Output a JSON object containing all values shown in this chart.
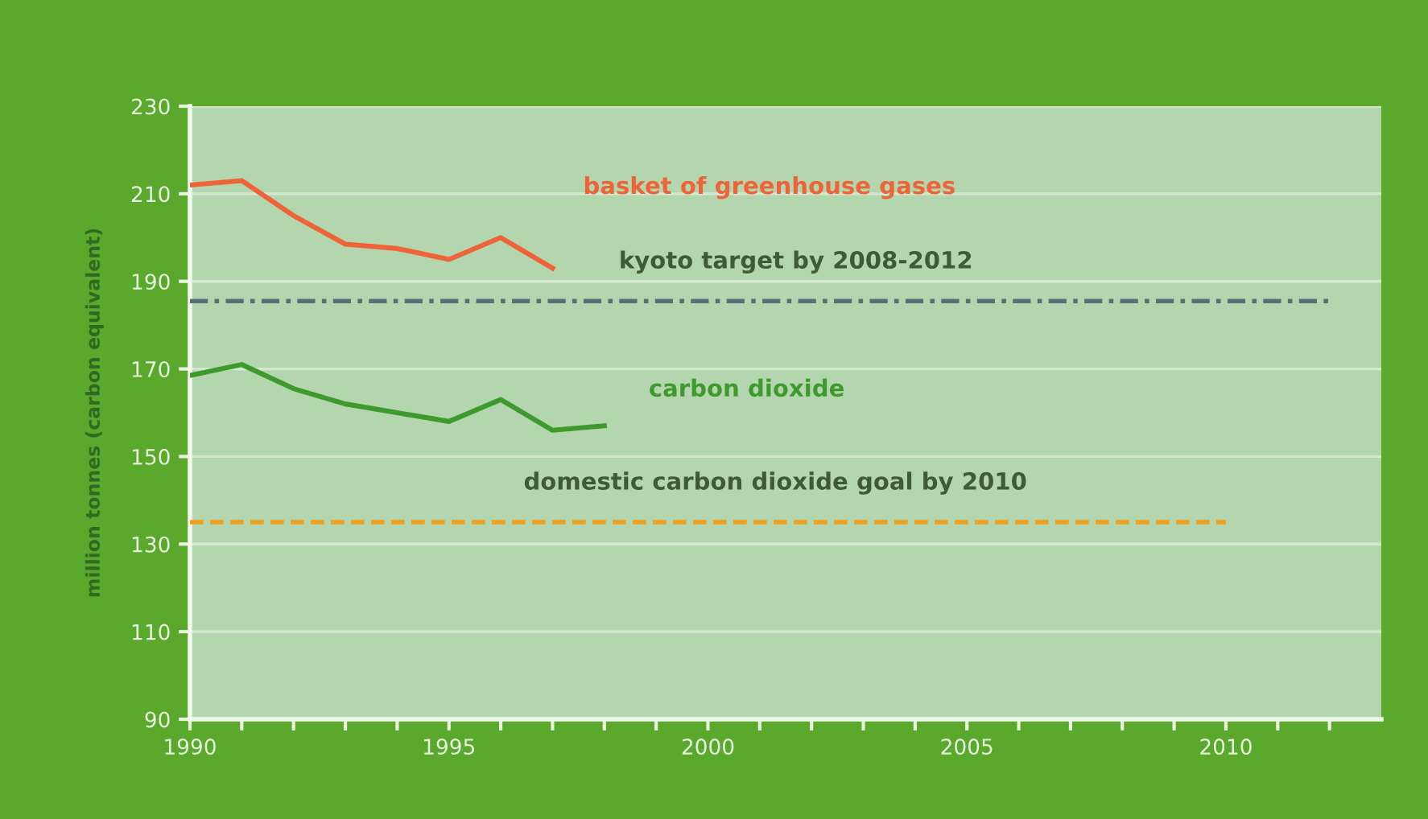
{
  "chart_data": {
    "type": "line",
    "ylabel": "million tonnes (carbon equivalent)",
    "xlim": [
      1990,
      2013
    ],
    "ylim": [
      90,
      230
    ],
    "xticks": [
      1990,
      {
        "value": 1991,
        "label": null
      },
      {
        "value": 1992,
        "label": null
      },
      {
        "value": 1993,
        "label": null
      },
      {
        "value": 1994,
        "label": null
      },
      1995,
      {
        "value": 1996,
        "label": null
      },
      {
        "value": 1997,
        "label": null
      },
      {
        "value": 1998,
        "label": null
      },
      {
        "value": 1999,
        "label": null
      },
      2000,
      {
        "value": 2001,
        "label": null
      },
      {
        "value": 2002,
        "label": null
      },
      {
        "value": 2003,
        "label": null
      },
      {
        "value": 2004,
        "label": null
      },
      2005,
      {
        "value": 2006,
        "label": null
      },
      {
        "value": 2007,
        "label": null
      },
      {
        "value": 2008,
        "label": null
      },
      {
        "value": 2009,
        "label": null
      },
      2010,
      {
        "value": 2011,
        "label": null
      },
      {
        "value": 2012,
        "label": null
      }
    ],
    "yticks": [
      90,
      110,
      130,
      150,
      170,
      190,
      210,
      230
    ],
    "grid": "y",
    "legend": false,
    "marker": "none",
    "series": [
      {
        "name": "basket of greenhouse gases",
        "color": "#ee6438",
        "x": [
          1990,
          1991,
          1992,
          1993,
          1994,
          1995,
          1996,
          1997
        ],
        "values": [
          212,
          213,
          205,
          198.5,
          197.5,
          195,
          200,
          193
        ]
      },
      {
        "name": "kyoto target by 2008-2012",
        "color": "#5a6e78",
        "line_style": "dashdot",
        "x": [
          1990,
          2012
        ],
        "values": [
          185.5,
          185.5
        ]
      },
      {
        "name": "carbon dioxide",
        "color": "#3f9a2e",
        "x": [
          1990,
          1991,
          1992,
          1993,
          1994,
          1995,
          1996,
          1997,
          1998
        ],
        "values": [
          168.5,
          171,
          165.5,
          162,
          160,
          158,
          163,
          156,
          157
        ]
      },
      {
        "name": "domestic carbon dioxide goal by 2010",
        "color": "#f0a020",
        "line_style": "dashed",
        "x": [
          1990,
          2010
        ],
        "values": [
          135,
          135
        ]
      }
    ]
  }
}
